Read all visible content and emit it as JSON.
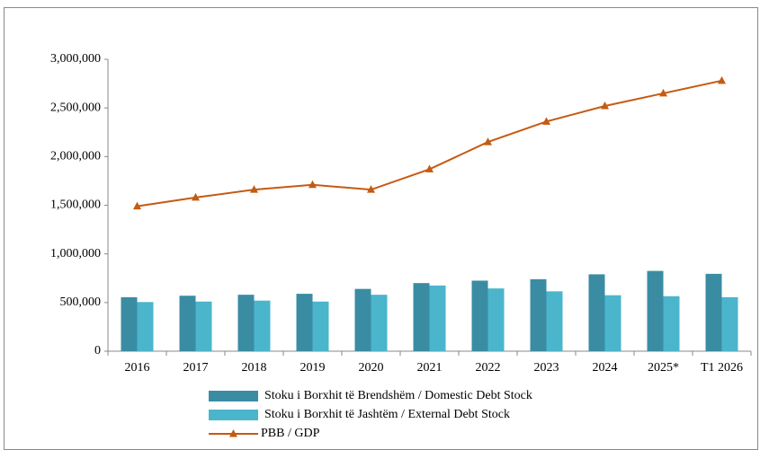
{
  "chart_data": {
    "type": "bar_line",
    "categories": [
      "2016",
      "2017",
      "2018",
      "2019",
      "2020",
      "2021",
      "2022",
      "2023",
      "2024",
      "2025*",
      "T1 2026"
    ],
    "series": [
      {
        "name": "Stoku i Borxhit të Brendshëm / Domestic Debt Stock",
        "color": "#3a8ca3",
        "kind": "bar",
        "values": [
          555000,
          570000,
          580000,
          590000,
          640000,
          700000,
          725000,
          740000,
          790000,
          825000,
          795000
        ]
      },
      {
        "name": "Stoku i Borxhit të Jashtëm / External Debt Stock",
        "color": "#4bb5cc",
        "kind": "bar",
        "values": [
          505000,
          510000,
          520000,
          510000,
          580000,
          675000,
          645000,
          615000,
          575000,
          565000,
          555000
        ]
      },
      {
        "name": "PBB / GDP",
        "color": "#c55a11",
        "kind": "line",
        "values": [
          1490000,
          1580000,
          1660000,
          1710000,
          1660000,
          1870000,
          2150000,
          2360000,
          2520000,
          2650000,
          2780000
        ]
      }
    ],
    "ylim": [
      0,
      3000000
    ],
    "yticks": [
      0,
      {
        "value": 500000,
        "label": "500,000"
      },
      {
        "value": 1000000,
        "label": "1,000,000"
      },
      {
        "value": 1500000,
        "label": "1,500,000"
      },
      {
        "value": 2000000,
        "label": "2,000,000"
      },
      {
        "value": 2500000,
        "label": "2,500,000"
      },
      {
        "value": 3000000,
        "label": "3,000,000"
      }
    ],
    "legend": "bottom"
  }
}
